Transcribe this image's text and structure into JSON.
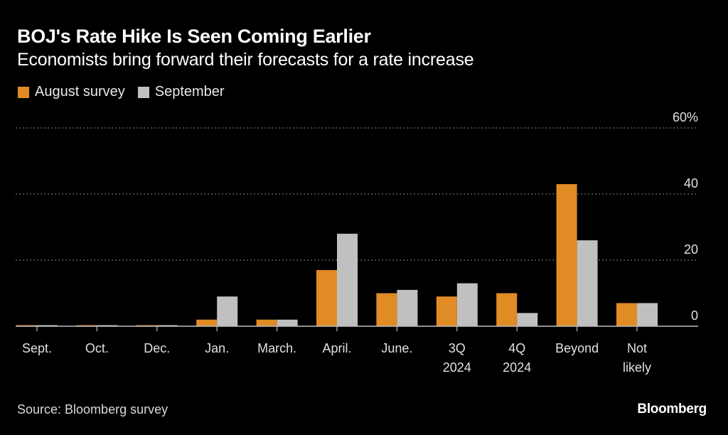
{
  "header": {
    "title": "BOJ's Rate Hike Is Seen Coming Earlier",
    "subtitle": "Economists bring forward their forecasts for a rate increase"
  },
  "footer": {
    "source": "Source: Bloomberg survey",
    "brand": "Bloomberg"
  },
  "colors": {
    "background": "#000000",
    "august": "#e08b24",
    "september": "#c0c0c0",
    "grid": "#8a8a8a",
    "axis": "#bdbdbd"
  },
  "chart_data": {
    "type": "bar",
    "title": "BOJ's Rate Hike Is Seen Coming Earlier",
    "subtitle": "Economists bring forward their forecasts for a rate increase",
    "xlabel": "",
    "ylabel": "",
    "ylim": [
      0,
      60
    ],
    "yticks": [
      0,
      20,
      40,
      60
    ],
    "ytick_labels": [
      "0",
      "20",
      "40",
      "60%"
    ],
    "grid": true,
    "legend_position": "top-left",
    "categories": [
      [
        "Sept."
      ],
      [
        "Oct."
      ],
      [
        "Dec."
      ],
      [
        "Jan."
      ],
      [
        "March."
      ],
      [
        "April."
      ],
      [
        "June."
      ],
      [
        "3Q",
        "2024"
      ],
      [
        "4Q",
        "2024"
      ],
      [
        "Beyond"
      ],
      [
        "Not",
        "likely"
      ]
    ],
    "series": [
      {
        "name": "August survey",
        "color": "#e08b24",
        "values": [
          0,
          0,
          0,
          2,
          2,
          17,
          10,
          9,
          10,
          43,
          7
        ]
      },
      {
        "name": "September",
        "color": "#c0c0c0",
        "values": [
          0,
          0,
          0,
          9,
          2,
          28,
          11,
          13,
          4,
          26,
          7
        ]
      }
    ]
  }
}
